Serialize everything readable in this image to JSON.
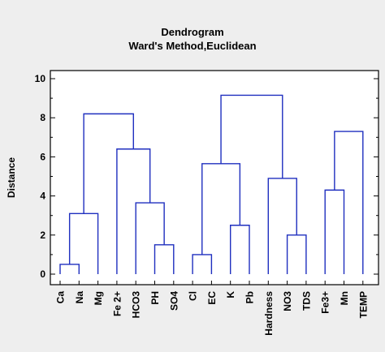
{
  "chart_data": {
    "type": "dendrogram",
    "title": "Dendrogram",
    "subtitle": "Ward's Method,Euclidean",
    "xlabel": "",
    "ylabel": "Distance",
    "ylim": [
      0,
      10
    ],
    "yticks": [
      0,
      2,
      4,
      6,
      8,
      10
    ],
    "grid": false,
    "leaves": [
      "Ca",
      "Na",
      "Mg",
      "Fe 2+",
      "HCO3",
      "PH",
      "SO4",
      "Cl",
      "EC",
      "K",
      "Pb",
      "Hardness",
      "NO3",
      "TDS",
      "Fe3+",
      "Mn",
      "TEMP"
    ],
    "merges": [
      {
        "left": "Ca",
        "right": "Na",
        "height": 0.5
      },
      {
        "left": "Ca-Na",
        "right": "Mg",
        "height": 3.1
      },
      {
        "left": "PH",
        "right": "SO4",
        "height": 1.5
      },
      {
        "left": "HCO3",
        "right": "PH-SO4",
        "height": 3.65
      },
      {
        "left": "Fe 2+",
        "right": "HCO3-PH-SO4",
        "height": 6.4
      },
      {
        "left": "Ca-Na-Mg",
        "right": "Fe 2+-HCO3-PH-SO4",
        "height": 8.2
      },
      {
        "left": "Cl",
        "right": "EC",
        "height": 1.0
      },
      {
        "left": "K",
        "right": "Pb",
        "height": 2.5
      },
      {
        "left": "Cl-EC",
        "right": "K-Pb",
        "height": 5.65
      },
      {
        "left": "NO3",
        "right": "TDS",
        "height": 2.0
      },
      {
        "left": "Hardness",
        "right": "NO3-TDS",
        "height": 4.9
      },
      {
        "left": "Cl-EC-K-Pb",
        "right": "Hardness-NO3-TDS",
        "height": 9.15
      },
      {
        "left": "Fe3+",
        "right": "Mn",
        "height": 4.3
      },
      {
        "left": "Fe3+-Mn",
        "right": "TEMP",
        "height": 7.3
      }
    ],
    "line_color": "#1f2fbf"
  }
}
